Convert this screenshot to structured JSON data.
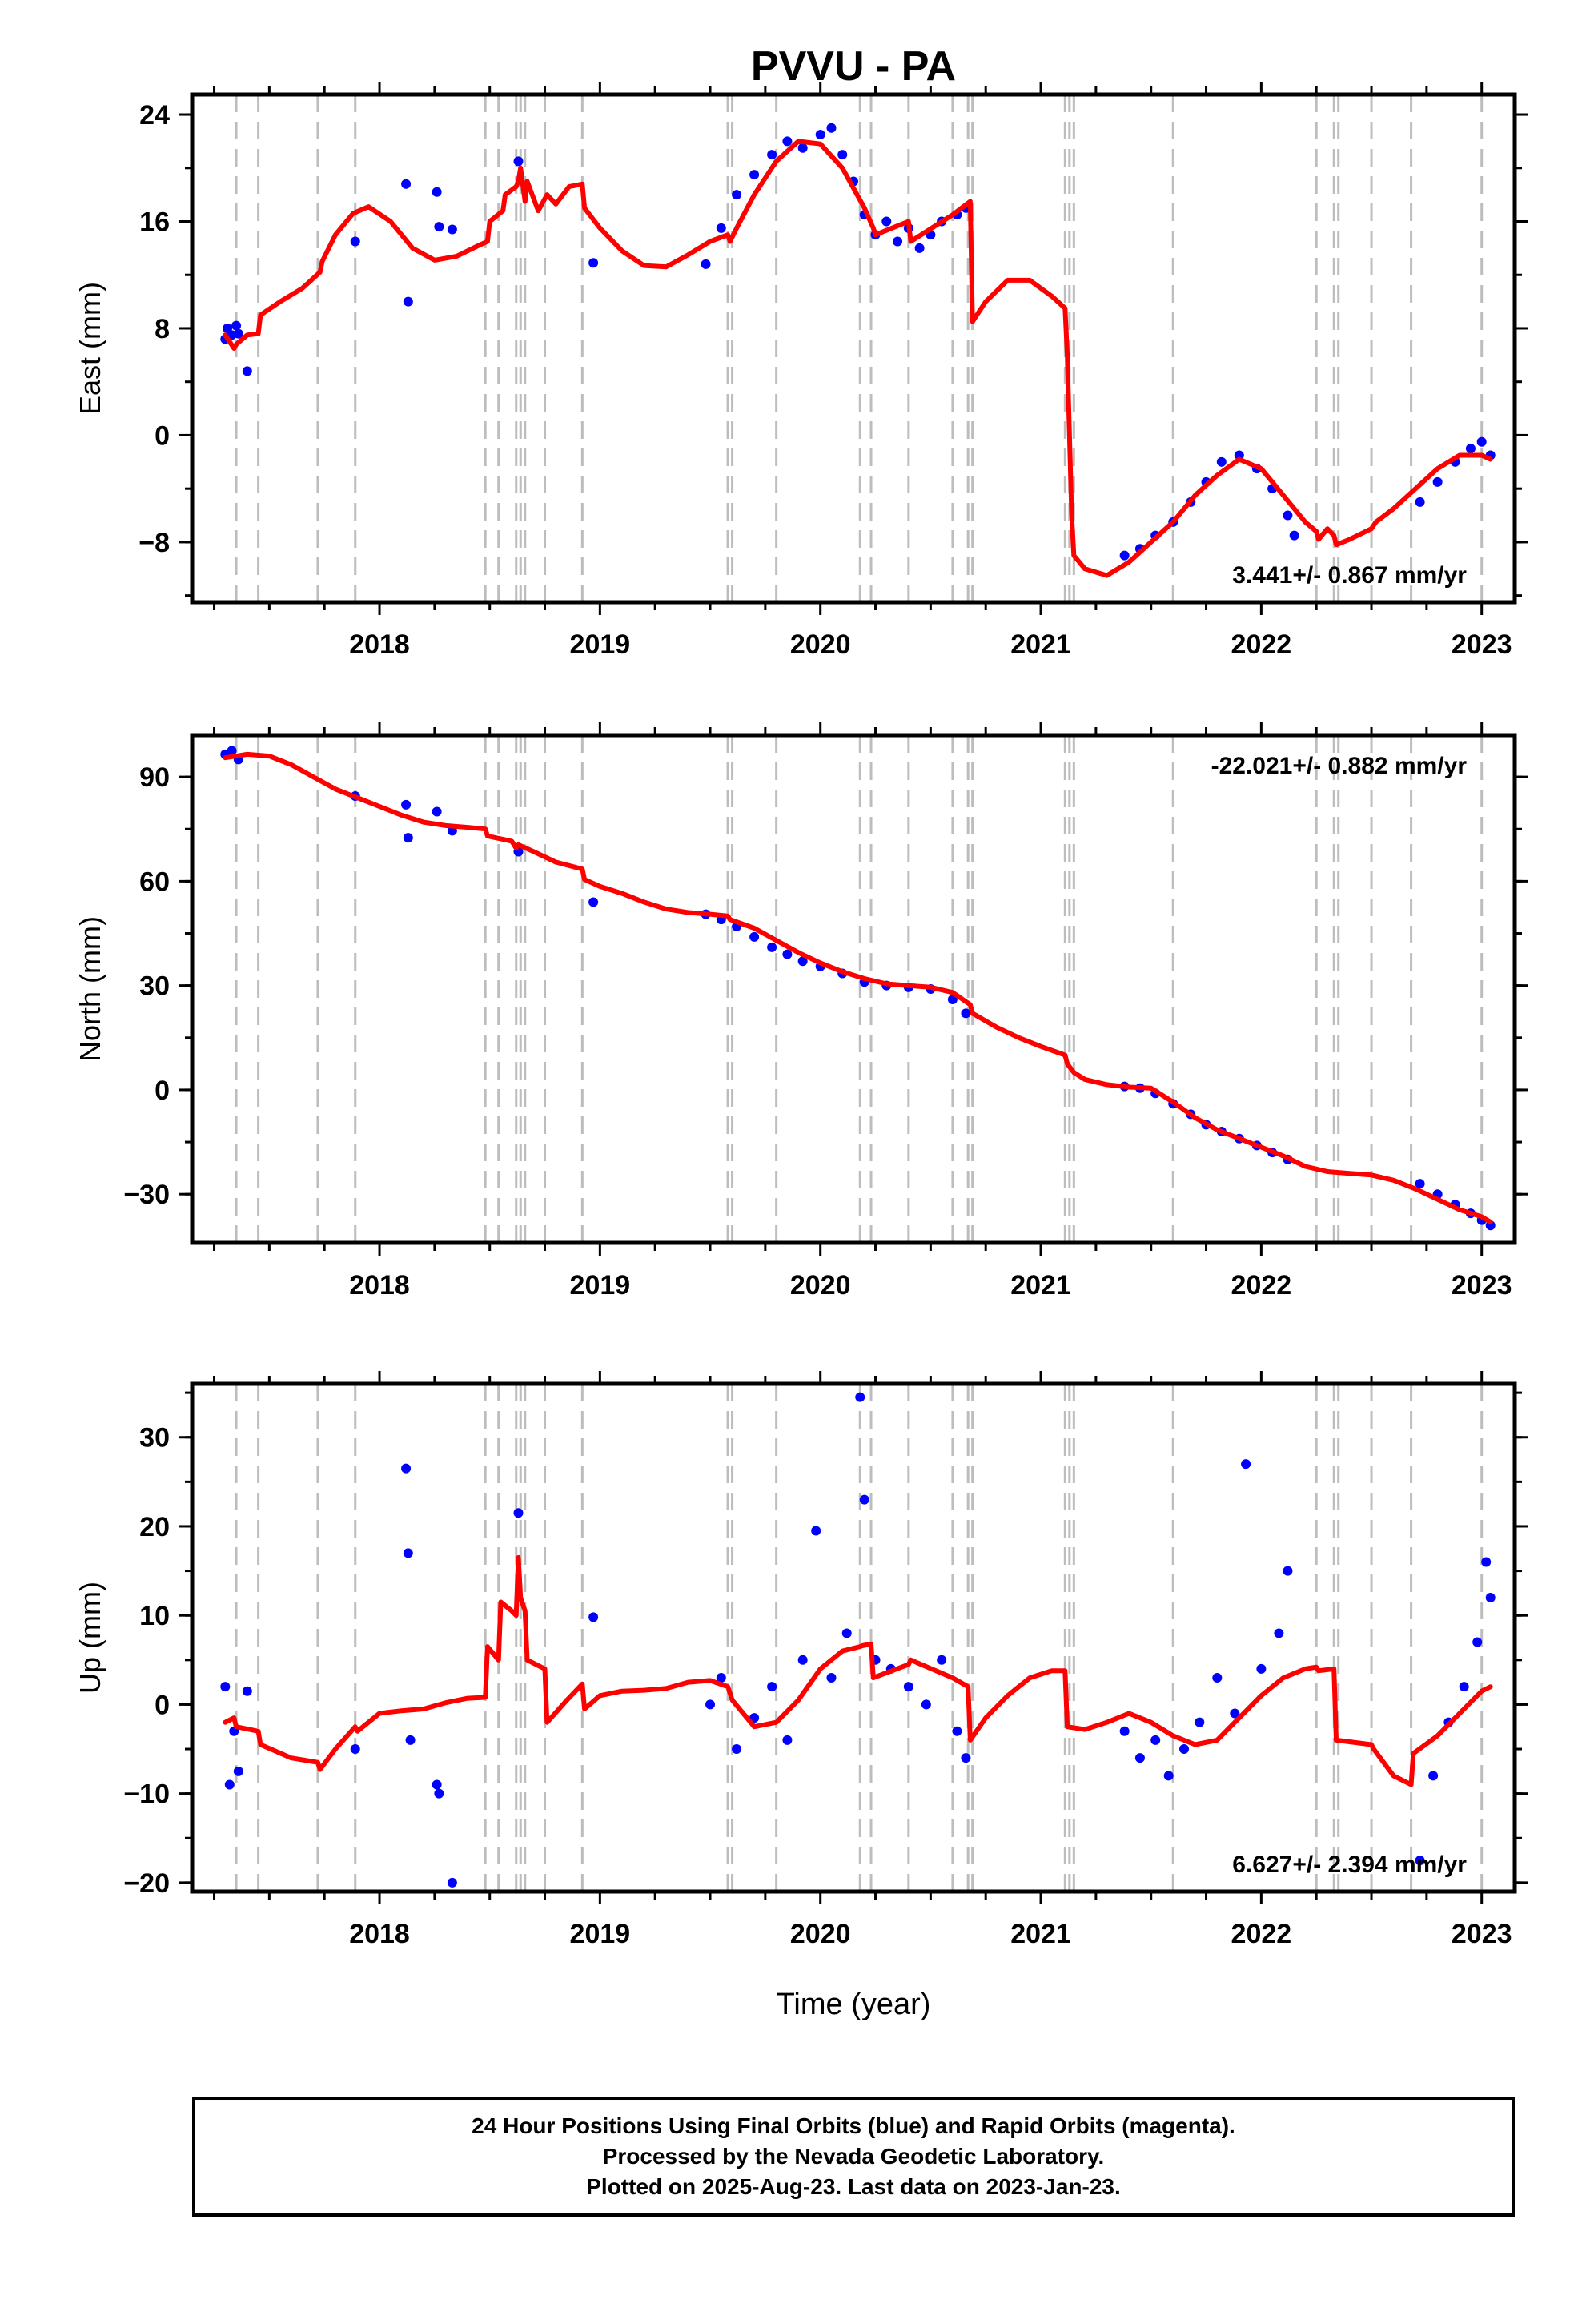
{
  "figure": {
    "title": "PVVU - PA",
    "xlabel": "Time (year)"
  },
  "colors": {
    "final_orbits": "#0000ff",
    "model": "#ff0000",
    "steps": "#bdbdbd",
    "axes": "#000000"
  },
  "footer": {
    "line1": "24 Hour Positions Using Final Orbits (blue) and Rapid Orbits (magenta).",
    "line2": "Processed by the Nevada Geodetic Laboratory.",
    "line3": "Plotted on 2025-Aug-23. Last data on 2023-Jan-23."
  },
  "chart_data": [
    {
      "type": "scatter",
      "ylabel": "East (mm)",
      "rate_label": "3.441+/- 0.867 mm/yr",
      "xlim": [
        2017.15,
        2023.15
      ],
      "ylim": [
        -12.5,
        25.5
      ],
      "xticks": [
        2018,
        2019,
        2020,
        2021,
        2022,
        2023
      ],
      "yticks": [
        -8,
        0,
        8,
        16,
        24
      ],
      "series": [
        {
          "type": "scatter",
          "color": "#0000ff",
          "x": [
            2017.3,
            2017.31,
            2017.33,
            2017.35,
            2017.36,
            2017.4,
            2017.89,
            2018.12,
            2018.13,
            2018.26,
            2018.27,
            2018.33,
            2018.63,
            2018.97,
            2019.48,
            2019.55,
            2019.62,
            2019.7,
            2019.78,
            2019.85,
            2019.92,
            2020.0,
            2020.05,
            2020.1,
            2020.15,
            2020.2,
            2020.25,
            2020.3,
            2020.35,
            2020.4,
            2020.45,
            2020.5,
            2020.55,
            2020.62,
            2020.66,
            2021.38,
            2021.45,
            2021.52,
            2021.6,
            2021.68,
            2021.75,
            2021.82,
            2021.9,
            2021.98,
            2022.05,
            2022.12,
            2022.15,
            2022.72,
            2022.8,
            2022.88,
            2022.95,
            2023.0,
            2023.04
          ],
          "y": [
            7.2,
            8.0,
            7.5,
            8.2,
            7.6,
            4.8,
            14.5,
            18.8,
            10.0,
            18.2,
            15.6,
            15.4,
            20.5,
            12.9,
            12.8,
            15.5,
            18.0,
            19.5,
            21.0,
            22.0,
            21.5,
            22.5,
            23.0,
            21.0,
            19.0,
            16.5,
            15.0,
            16.0,
            14.5,
            15.5,
            14.0,
            15.0,
            16.0,
            16.5,
            17.0,
            -9.0,
            -8.5,
            -7.5,
            -6.5,
            -5.0,
            -3.5,
            -2.0,
            -1.5,
            -2.5,
            -4.0,
            -6.0,
            -7.5,
            -5.0,
            -3.5,
            -2.0,
            -1.0,
            -0.5,
            -1.5
          ]
        },
        {
          "type": "line",
          "color": "#ff0000",
          "x": [
            2017.3,
            2017.34,
            2017.35,
            2017.4,
            2017.45,
            2017.46,
            2017.55,
            2017.65,
            2017.73,
            2017.74,
            2017.8,
            2017.88,
            2017.95,
            2018.05,
            2018.15,
            2018.25,
            2018.35,
            2018.45,
            2018.49,
            2018.5,
            2018.56,
            2018.57,
            2018.62,
            2018.63,
            2018.64,
            2018.66,
            2018.67,
            2018.72,
            2018.76,
            2018.8,
            2018.86,
            2018.92,
            2018.93,
            2019.0,
            2019.1,
            2019.2,
            2019.3,
            2019.4,
            2019.5,
            2019.58,
            2019.59,
            2019.62,
            2019.7,
            2019.8,
            2019.9,
            2020.0,
            2020.1,
            2020.2,
            2020.24,
            2020.25,
            2020.4,
            2020.41,
            2020.6,
            2020.68,
            2020.69,
            2020.75,
            2020.85,
            2020.95,
            2021.05,
            2021.11,
            2021.12,
            2021.14,
            2021.15,
            2021.2,
            2021.3,
            2021.4,
            2021.5,
            2021.6,
            2021.7,
            2021.8,
            2021.9,
            2022.0,
            2022.1,
            2022.2,
            2022.25,
            2022.26,
            2022.3,
            2022.33,
            2022.34,
            2022.4,
            2022.5,
            2022.52,
            2022.6,
            2022.7,
            2022.8,
            2022.9,
            2023.0,
            2023.04
          ],
          "y": [
            7.5,
            6.5,
            6.8,
            7.5,
            7.6,
            9.0,
            10.0,
            11.0,
            12.2,
            13.0,
            15.0,
            16.6,
            17.1,
            16.0,
            14.0,
            13.1,
            13.4,
            14.2,
            14.5,
            16.0,
            16.8,
            18.0,
            18.6,
            19.0,
            20.0,
            17.5,
            19.0,
            16.8,
            18.0,
            17.3,
            18.6,
            18.8,
            17.0,
            15.5,
            13.8,
            12.7,
            12.6,
            13.5,
            14.5,
            15.0,
            14.5,
            15.5,
            18.0,
            20.5,
            22.0,
            21.8,
            20.0,
            17.0,
            15.5,
            15.0,
            16.0,
            14.5,
            16.5,
            17.5,
            8.5,
            10.0,
            11.6,
            11.6,
            10.4,
            9.5,
            6.0,
            -6.0,
            -9.0,
            -10.0,
            -10.5,
            -9.5,
            -8.0,
            -6.5,
            -4.5,
            -3.0,
            -1.8,
            -2.5,
            -4.5,
            -6.5,
            -7.2,
            -7.8,
            -7.0,
            -7.5,
            -8.2,
            -7.8,
            -7.0,
            -6.5,
            -5.5,
            -4.0,
            -2.5,
            -1.5,
            -1.5,
            -1.8
          ]
        }
      ],
      "steps": [
        2017.35,
        2017.45,
        2017.72,
        2017.89,
        2018.48,
        2018.54,
        2018.62,
        2018.64,
        2018.66,
        2018.75,
        2018.92,
        2019.58,
        2019.6,
        2019.8,
        2020.18,
        2020.23,
        2020.4,
        2020.6,
        2020.67,
        2020.69,
        2021.11,
        2021.13,
        2021.15,
        2021.6,
        2022.25,
        2022.33,
        2022.35,
        2022.5,
        2022.68,
        2023.0
      ]
    },
    {
      "type": "scatter",
      "ylabel": "North (mm)",
      "rate_label": "-22.021+/- 0.882 mm/yr",
      "xlim": [
        2017.15,
        2023.15
      ],
      "ylim": [
        -44,
        102
      ],
      "xticks": [
        2018,
        2019,
        2020,
        2021,
        2022,
        2023
      ],
      "yticks": [
        -30,
        0,
        30,
        60,
        90
      ],
      "series": [
        {
          "type": "scatter",
          "color": "#0000ff",
          "x": [
            2017.3,
            2017.33,
            2017.36,
            2017.89,
            2018.12,
            2018.13,
            2018.26,
            2018.33,
            2018.63,
            2018.97,
            2019.48,
            2019.55,
            2019.62,
            2019.7,
            2019.78,
            2019.85,
            2019.92,
            2020.0,
            2020.1,
            2020.2,
            2020.3,
            2020.4,
            2020.5,
            2020.6,
            2020.66,
            2021.38,
            2021.45,
            2021.52,
            2021.6,
            2021.68,
            2021.75,
            2021.82,
            2021.9,
            2021.98,
            2022.05,
            2022.12,
            2022.72,
            2022.8,
            2022.88,
            2022.95,
            2023.0,
            2023.04
          ],
          "y": [
            96.5,
            97.5,
            95.0,
            84.5,
            82.0,
            72.5,
            80.0,
            74.5,
            68.5,
            54.0,
            50.5,
            49.0,
            47.0,
            44.0,
            41.0,
            39.0,
            37.0,
            35.5,
            33.5,
            31.0,
            30.0,
            29.5,
            29.0,
            26.0,
            22.0,
            1.0,
            0.5,
            -1.0,
            -4.0,
            -7.0,
            -10.0,
            -12.0,
            -14.0,
            -16.0,
            -18.0,
            -20.0,
            -27.0,
            -30.0,
            -33.0,
            -35.5,
            -37.5,
            -39.0
          ]
        },
        {
          "type": "line",
          "color": "#ff0000",
          "x": [
            2017.3,
            2017.4,
            2017.5,
            2017.6,
            2017.7,
            2017.8,
            2017.9,
            2018.0,
            2018.1,
            2018.2,
            2018.3,
            2018.4,
            2018.48,
            2018.49,
            2018.6,
            2018.62,
            2018.63,
            2018.7,
            2018.8,
            2018.92,
            2018.93,
            2019.0,
            2019.1,
            2019.2,
            2019.3,
            2019.4,
            2019.5,
            2019.58,
            2019.59,
            2019.7,
            2019.8,
            2019.9,
            2020.0,
            2020.1,
            2020.2,
            2020.3,
            2020.4,
            2020.5,
            2020.6,
            2020.68,
            2020.69,
            2020.8,
            2020.9,
            2021.0,
            2021.11,
            2021.12,
            2021.15,
            2021.2,
            2021.3,
            2021.4,
            2021.5,
            2021.6,
            2021.7,
            2021.8,
            2021.9,
            2022.0,
            2022.1,
            2022.2,
            2022.3,
            2022.4,
            2022.5,
            2022.6,
            2022.7,
            2022.8,
            2022.9,
            2023.0,
            2023.04
          ],
          "y": [
            95.5,
            96.5,
            96.0,
            93.5,
            90.0,
            86.5,
            84.0,
            81.5,
            79.0,
            77.0,
            76.0,
            75.5,
            75.0,
            73.0,
            71.5,
            69.5,
            70.5,
            68.5,
            65.5,
            63.5,
            60.5,
            58.5,
            56.5,
            54.0,
            52.0,
            51.0,
            50.5,
            50.0,
            49.0,
            46.5,
            43.0,
            39.5,
            36.5,
            34.0,
            32.0,
            30.5,
            30.0,
            29.5,
            28.0,
            24.5,
            22.0,
            18.0,
            15.0,
            12.5,
            10.0,
            7.5,
            5.0,
            3.0,
            1.5,
            0.8,
            0.5,
            -3.5,
            -8.0,
            -11.5,
            -14.0,
            -16.5,
            -19.0,
            -22.0,
            -23.5,
            -24.0,
            -24.5,
            -26.0,
            -28.5,
            -31.5,
            -34.5,
            -36.5,
            -38.0
          ]
        }
      ],
      "steps": [
        2017.35,
        2017.45,
        2017.72,
        2017.89,
        2018.48,
        2018.54,
        2018.62,
        2018.64,
        2018.66,
        2018.75,
        2018.92,
        2019.58,
        2019.6,
        2019.8,
        2020.18,
        2020.23,
        2020.4,
        2020.6,
        2020.67,
        2020.69,
        2021.11,
        2021.13,
        2021.15,
        2021.6,
        2022.25,
        2022.33,
        2022.35,
        2022.5,
        2022.68,
        2023.0
      ]
    },
    {
      "type": "scatter",
      "ylabel": "Up (mm)",
      "rate_label": "6.627+/- 2.394 mm/yr",
      "xlim": [
        2017.15,
        2023.15
      ],
      "ylim": [
        -21,
        36
      ],
      "xticks": [
        2018,
        2019,
        2020,
        2021,
        2022,
        2023
      ],
      "yticks": [
        -20,
        -10,
        0,
        10,
        20,
        30
      ],
      "series": [
        {
          "type": "scatter",
          "color": "#0000ff",
          "x": [
            2017.3,
            2017.32,
            2017.34,
            2017.36,
            2017.4,
            2017.89,
            2018.12,
            2018.13,
            2018.14,
            2018.26,
            2018.27,
            2018.33,
            2018.63,
            2018.97,
            2019.5,
            2019.55,
            2019.62,
            2019.7,
            2019.78,
            2019.85,
            2019.92,
            2019.98,
            2020.05,
            2020.12,
            2020.18,
            2020.2,
            2020.25,
            2020.32,
            2020.4,
            2020.48,
            2020.55,
            2020.62,
            2020.66,
            2021.38,
            2021.45,
            2021.52,
            2021.58,
            2021.65,
            2021.72,
            2021.8,
            2021.88,
            2021.93,
            2022.0,
            2022.08,
            2022.12,
            2022.72,
            2022.78,
            2022.85,
            2022.92,
            2022.98,
            2023.02,
            2023.04
          ],
          "y": [
            2.0,
            -9.0,
            -3.0,
            -7.5,
            1.5,
            -5.0,
            26.5,
            17.0,
            -4.0,
            -9.0,
            -10.0,
            -20.0,
            21.5,
            9.8,
            0.0,
            3.0,
            -5.0,
            -1.5,
            2.0,
            -4.0,
            5.0,
            19.5,
            3.0,
            8.0,
            34.5,
            23.0,
            5.0,
            4.0,
            2.0,
            0.0,
            5.0,
            -3.0,
            -6.0,
            -3.0,
            -6.0,
            -4.0,
            -8.0,
            -5.0,
            -2.0,
            3.0,
            -1.0,
            27.0,
            4.0,
            8.0,
            15.0,
            -17.5,
            -8.0,
            -2.0,
            2.0,
            7.0,
            16.0,
            12.0
          ]
        },
        {
          "type": "line",
          "color": "#ff0000",
          "x": [
            2017.3,
            2017.34,
            2017.35,
            2017.45,
            2017.46,
            2017.6,
            2017.72,
            2017.73,
            2017.8,
            2017.89,
            2017.9,
            2018.0,
            2018.1,
            2018.2,
            2018.3,
            2018.4,
            2018.48,
            2018.49,
            2018.54,
            2018.55,
            2018.6,
            2018.62,
            2018.63,
            2018.64,
            2018.66,
            2018.67,
            2018.75,
            2018.76,
            2018.85,
            2018.92,
            2018.93,
            2019.0,
            2019.1,
            2019.2,
            2019.3,
            2019.4,
            2019.5,
            2019.58,
            2019.6,
            2019.7,
            2019.8,
            2019.9,
            2020.0,
            2020.1,
            2020.18,
            2020.19,
            2020.23,
            2020.24,
            2020.4,
            2020.41,
            2020.6,
            2020.67,
            2020.68,
            2020.75,
            2020.85,
            2020.95,
            2021.05,
            2021.11,
            2021.12,
            2021.2,
            2021.3,
            2021.4,
            2021.5,
            2021.6,
            2021.7,
            2021.8,
            2021.9,
            2022.0,
            2022.1,
            2022.2,
            2022.25,
            2022.26,
            2022.33,
            2022.34,
            2022.5,
            2022.51,
            2022.6,
            2022.68,
            2022.69,
            2022.8,
            2022.9,
            2023.0,
            2023.04
          ],
          "y": [
            -2.0,
            -1.5,
            -2.5,
            -3.0,
            -4.5,
            -6.0,
            -6.5,
            -7.3,
            -5.0,
            -2.5,
            -3.0,
            -1.0,
            -0.7,
            -0.5,
            0.2,
            0.7,
            0.8,
            6.5,
            5.0,
            11.5,
            10.5,
            10.0,
            16.5,
            12.0,
            10.5,
            5.0,
            4.0,
            -2.0,
            0.5,
            2.3,
            -0.5,
            1.0,
            1.5,
            1.6,
            1.8,
            2.5,
            2.7,
            2.0,
            0.5,
            -2.5,
            -2.0,
            0.5,
            4.0,
            6.0,
            6.5,
            6.6,
            6.8,
            3.0,
            4.5,
            5.0,
            3.0,
            2.0,
            -4.0,
            -1.5,
            1.0,
            3.0,
            3.8,
            3.8,
            -2.5,
            -2.8,
            -2.0,
            -1.0,
            -2.0,
            -3.5,
            -4.5,
            -4.0,
            -1.5,
            1.0,
            3.0,
            4.0,
            4.2,
            3.8,
            4.0,
            -4.0,
            -4.5,
            -5.0,
            -8.0,
            -9.0,
            -5.5,
            -3.5,
            -1.0,
            1.5,
            2.0
          ]
        }
      ],
      "steps": [
        2017.35,
        2017.45,
        2017.72,
        2017.89,
        2018.48,
        2018.54,
        2018.62,
        2018.64,
        2018.66,
        2018.75,
        2018.92,
        2019.58,
        2019.6,
        2019.8,
        2020.18,
        2020.23,
        2020.4,
        2020.6,
        2020.67,
        2020.69,
        2021.11,
        2021.13,
        2021.15,
        2021.6,
        2022.25,
        2022.33,
        2022.35,
        2022.5,
        2022.68,
        2023.0
      ]
    }
  ]
}
